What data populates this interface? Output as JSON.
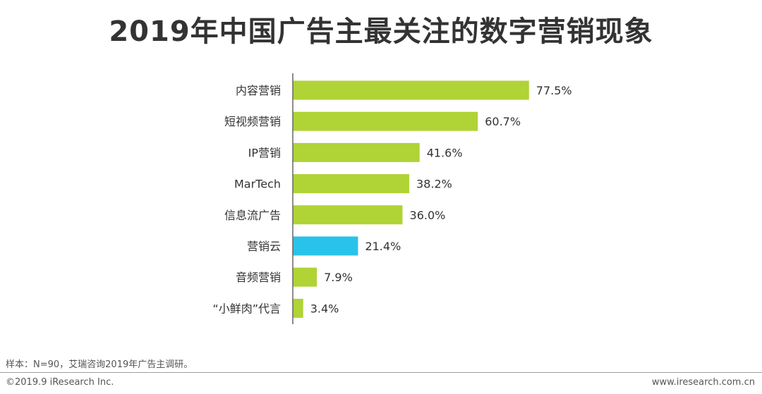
{
  "page": {
    "title": "2019年中国广告主最关注的数字营销现象",
    "note": "样本：N=90，艾瑞咨询2019年广告主调研。",
    "copyright": "©2019.9 iResearch Inc.",
    "website": "www.iresearch.com.cn"
  },
  "chart_data": {
    "type": "bar",
    "orientation": "horizontal",
    "categories": [
      "内容营销",
      "短视频营销",
      "IP营销",
      "MarTech",
      "信息流广告",
      "营销云",
      "音频营销",
      "“小鲜肉”代言"
    ],
    "values": [
      77.5,
      60.7,
      41.6,
      38.2,
      36.0,
      21.4,
      7.9,
      3.4
    ],
    "value_labels": [
      "77.5%",
      "60.7%",
      "41.6%",
      "38.2%",
      "36.0%",
      "21.4%",
      "7.9%",
      "3.4%"
    ],
    "unit": "%",
    "xlim": [
      0,
      100
    ],
    "grid": false,
    "bar_color": "#b0d335",
    "highlight_color": "#29c3ea",
    "highlight_index": 5
  }
}
